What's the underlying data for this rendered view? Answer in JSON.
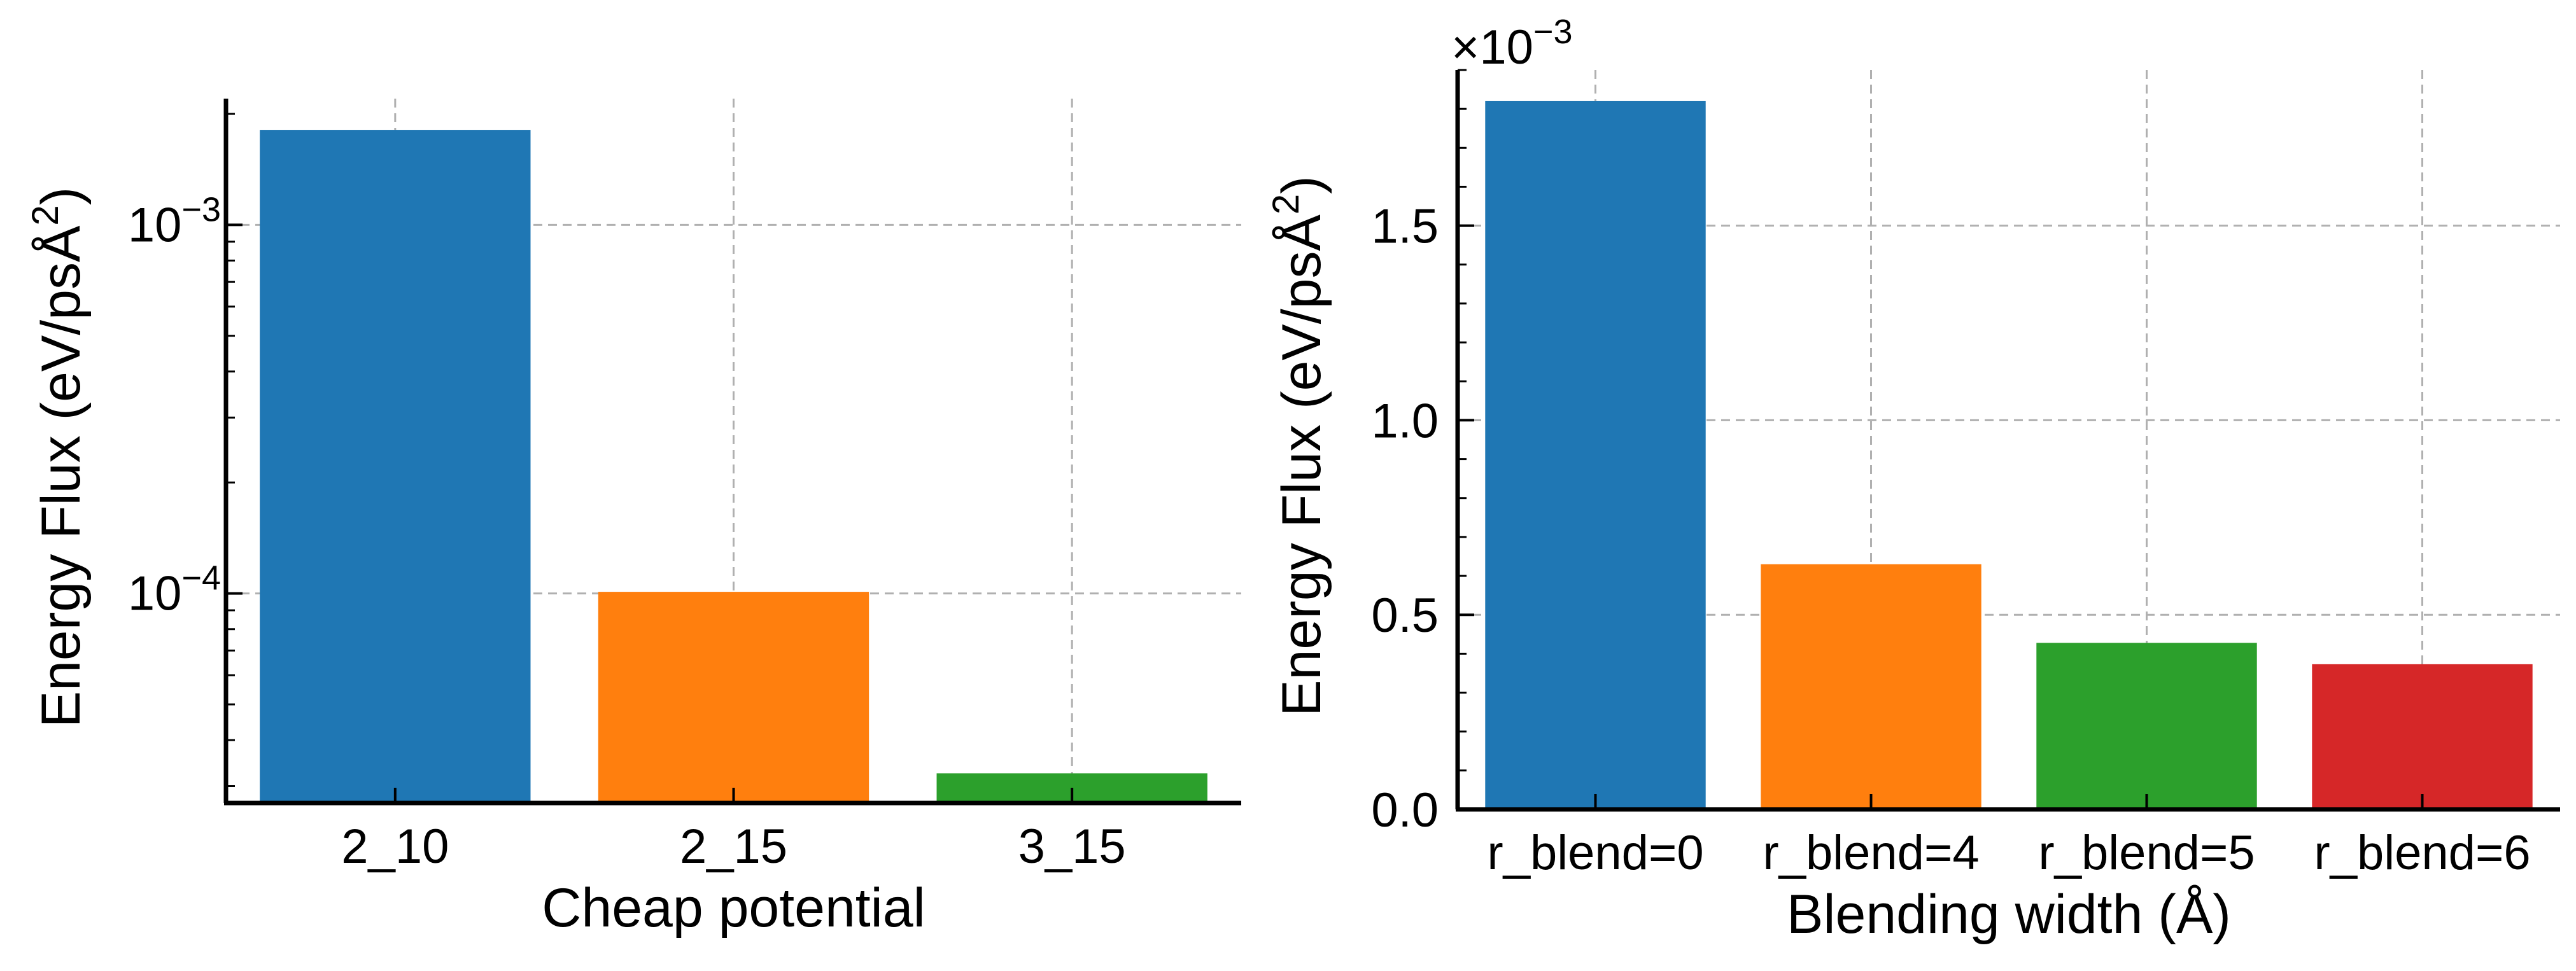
{
  "chart_data": [
    {
      "type": "bar",
      "title": "",
      "xlabel": "Cheap potential",
      "ylabel": "Energy Flux (eV/psÅ²)",
      "yscale": "log",
      "ylim": [
        2.7e-05,
        0.0022
      ],
      "yticks": [
        {
          "value": 0.0001,
          "base": "10",
          "exp": "−4"
        },
        {
          "value": 0.001,
          "base": "10",
          "exp": "−3"
        }
      ],
      "categories": [
        "2_10",
        "2_15",
        "3_15"
      ],
      "values": [
        0.00181,
        0.000101,
        3.25e-05
      ],
      "colors": [
        "#1f77b4",
        "#ff7f0e",
        "#2ca02c"
      ],
      "grid": true
    },
    {
      "type": "bar",
      "title": "",
      "xlabel": "Blending width (Å)",
      "ylabel": "Energy Flux (eV/psÅ²)",
      "yscale": "linear",
      "ylim": [
        0,
        0.0019
      ],
      "offset_text": {
        "prefix": "×10",
        "exp": "−3"
      },
      "yticks": [
        {
          "value": 0,
          "label": "0.0"
        },
        {
          "value": 0.0005,
          "label": "0.5"
        },
        {
          "value": 0.001,
          "label": "1.0"
        },
        {
          "value": 0.0015,
          "label": "1.5"
        }
      ],
      "categories": [
        "r_blend=0",
        "r_blend=4",
        "r_blend=5",
        "r_blend=6"
      ],
      "values": [
        0.00182,
        0.00063,
        0.000428,
        0.000373
      ],
      "colors": [
        "#1f77b4",
        "#ff7f0e",
        "#2ca02c",
        "#d62728"
      ],
      "grid": true
    }
  ]
}
